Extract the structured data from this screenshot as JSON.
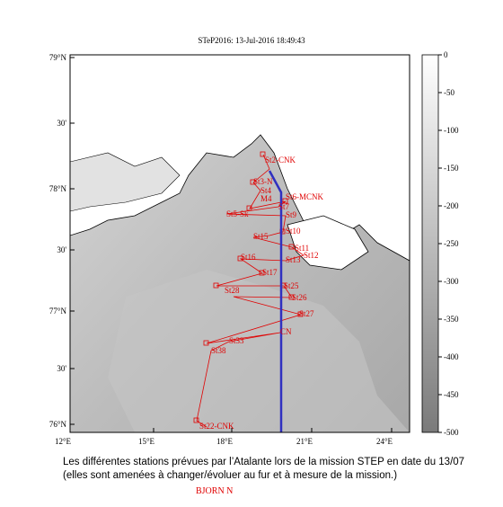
{
  "header": {
    "title": "STeP2016: 13-Jul-2016 18:49:43"
  },
  "map": {
    "lon_labels": [
      "12°E",
      "15°E",
      "18°E",
      "21°E",
      "24°E"
    ],
    "lat_labels": [
      "79°N",
      "30'",
      "78°N",
      "30'",
      "77°N",
      "30'",
      "76°N"
    ],
    "stations": [
      "St2-CNK",
      "St3-N",
      "St4",
      "M4",
      "St6-MCNK",
      "St7",
      "St5-Sk",
      "St9",
      "St10",
      "St15",
      "St11",
      "St12",
      "St13",
      "St16",
      "St17",
      "St25",
      "St26",
      "St27",
      "St28",
      "St33",
      "St38",
      "CN",
      "St22-CNK"
    ]
  },
  "colorbar": {
    "range": [
      -500,
      0
    ],
    "ticks": [
      0,
      -50,
      -100,
      -150,
      -200,
      -250,
      -300,
      -350,
      -400,
      -450,
      -500
    ]
  },
  "caption": {
    "line1": "Les différentes stations prévues par l’Atalante lors de la mission STEP en date du 13/07",
    "line2": "(elles sont amenées à changer/évoluer au fur et à mesure de la mission.)"
  },
  "footer": {
    "label": "BJORN N"
  }
}
